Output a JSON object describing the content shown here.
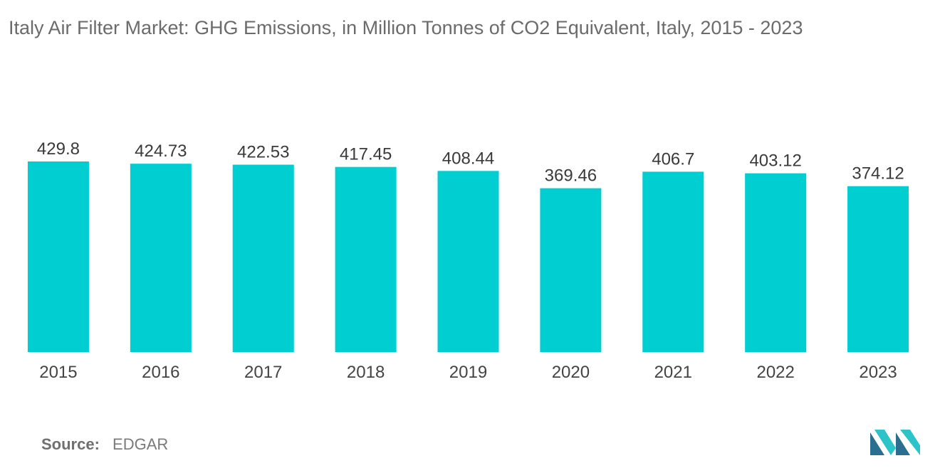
{
  "chart_data": {
    "type": "bar",
    "title": "Italy Air Filter Market: GHG Emissions, in Million Tonnes of CO2 Equivalent, Italy, 2015 - 2023",
    "xlabel": "",
    "ylabel": "",
    "categories": [
      "2015",
      "2016",
      "2017",
      "2018",
      "2019",
      "2020",
      "2021",
      "2022",
      "2023"
    ],
    "values": [
      429.8,
      424.73,
      422.53,
      417.45,
      408.44,
      369.46,
      406.7,
      403.12,
      374.12
    ],
    "value_labels": [
      "429.8",
      "424.73",
      "422.53",
      "417.45",
      "408.44",
      "369.46",
      "406.7",
      "403.12",
      "374.12"
    ],
    "ylim": [
      0,
      429.8
    ],
    "grid": false,
    "legend": "none",
    "bar_color": "#00ced1"
  },
  "source": {
    "label": "Source:",
    "value": "EDGAR"
  },
  "logo": {
    "icon": "mordor-intelligence-logo-icon",
    "colors": [
      "#2a6f8f",
      "#2cc4c9"
    ]
  }
}
